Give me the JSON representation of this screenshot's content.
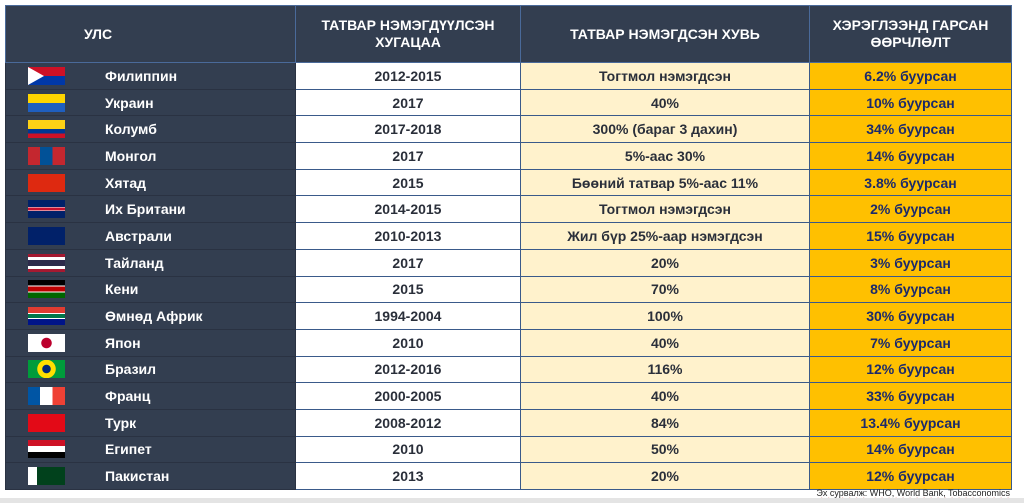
{
  "headers": [
    "УЛС",
    "ТАТВАР НЭМЭГДҮҮЛСЭН ХУГАЦАА",
    "ТАТВАР НЭМЭГДСЭН ХУВЬ",
    "ХЭРЭГЛЭЭНД ГАРСАН ӨӨРЧЛӨЛТ"
  ],
  "rows": [
    {
      "country": "Филиппин",
      "flag": "philippines-flag",
      "period": "2012-2015",
      "increase": "Тогтмол нэмэгдсэн",
      "change": "6.2% буурсан"
    },
    {
      "country": "Украин",
      "flag": "ukraine-flag",
      "period": "2017",
      "increase": "40%",
      "change": "10% буурсан"
    },
    {
      "country": "Колумб",
      "flag": "colombia-flag",
      "period": "2017-2018",
      "increase": "300% (бараг 3 дахин)",
      "change": "34% буурсан"
    },
    {
      "country": "Монгол",
      "flag": "mongolia-flag",
      "period": "2017",
      "increase": "5%-аас 30%",
      "change": "14% буурсан"
    },
    {
      "country": "Хятад",
      "flag": "china-flag",
      "period": "2015",
      "increase": "Бөөний татвар 5%-аас 11%",
      "change": "3.8% буурсан"
    },
    {
      "country": "Их Британи",
      "flag": "uk-flag",
      "period": "2014-2015",
      "increase": "Тогтмол нэмэгдсэн",
      "change": "2% буурсан"
    },
    {
      "country": "Австрали",
      "flag": "australia-flag",
      "period": "2010-2013",
      "increase": "Жил бүр 25%-аар нэмэгдсэн",
      "change": "15% буурсан"
    },
    {
      "country": "Тайланд",
      "flag": "thailand-flag",
      "period": "2017",
      "increase": "20%",
      "change": "3% буурсан"
    },
    {
      "country": "Кени",
      "flag": "kenya-flag",
      "period": "2015",
      "increase": "70%",
      "change": "8% буурсан"
    },
    {
      "country": "Өмнөд Африк",
      "flag": "south-africa-flag",
      "period": "1994-2004",
      "increase": "100%",
      "change": "30% буурсан"
    },
    {
      "country": "Япон",
      "flag": "japan-flag",
      "period": "2010",
      "increase": "40%",
      "change": "7% буурсан"
    },
    {
      "country": "Бразил",
      "flag": "brazil-flag",
      "period": "2012-2016",
      "increase": "116%",
      "change": "12% буурсан"
    },
    {
      "country": "Франц",
      "flag": "france-flag",
      "period": "2000-2005",
      "increase": "40%",
      "change": "33% буурсан"
    },
    {
      "country": "Турк",
      "flag": "turkey-flag",
      "period": "2008-2012",
      "increase": "84%",
      "change": "13.4% буурсан"
    },
    {
      "country": "Египет",
      "flag": "egypt-flag",
      "period": "2010",
      "increase": "50%",
      "change": "14% буурсан"
    },
    {
      "country": "Пакистан",
      "flag": "pakistan-flag",
      "period": "2013",
      "increase": "20%",
      "change": "12% буурсан"
    }
  ],
  "source_label": "Эх сурвалж:",
  "source_text": "WHO, World Bank, Tobacconomics",
  "colors": {
    "header": "#333e50",
    "col3": "#fff2cc",
    "col4": "#ffc000"
  }
}
